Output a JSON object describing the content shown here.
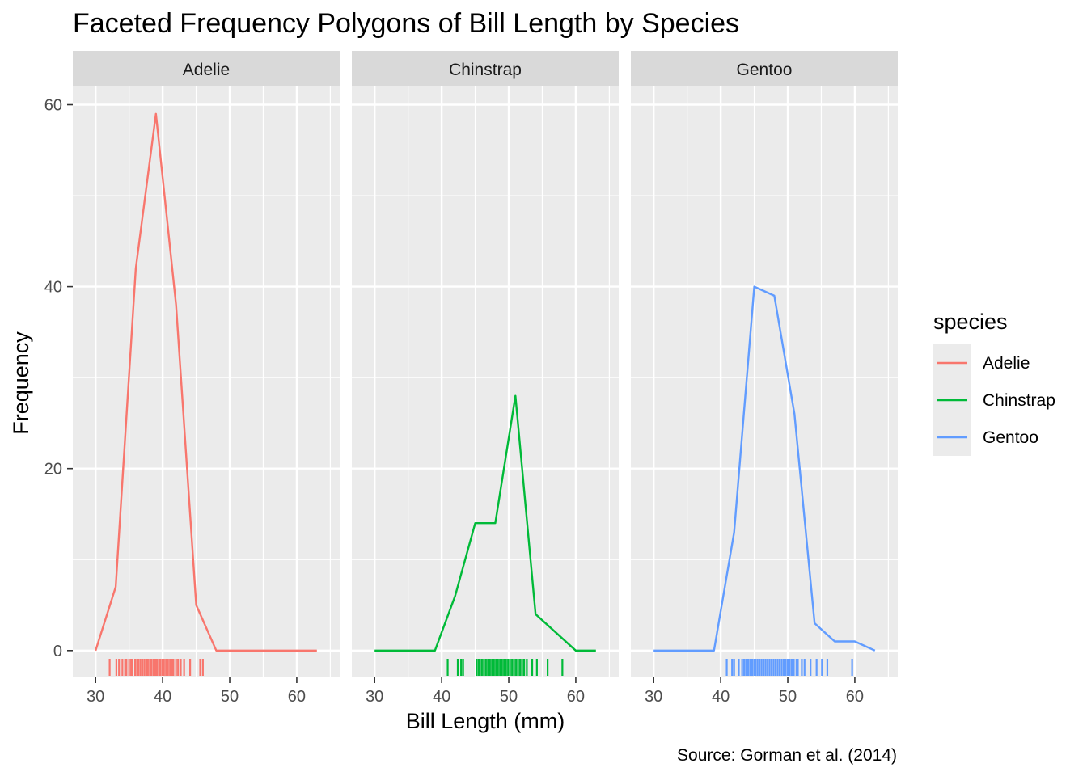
{
  "chart_data": {
    "type": "line",
    "title": "Faceted Frequency Polygons of Bill Length by Species",
    "xlabel": "Bill Length (mm)",
    "ylabel": "Frequency",
    "caption": "Source: Gorman et al. (2014)",
    "xlim": [
      26.6,
      66.4
    ],
    "ylim": [
      -2.95,
      62.0
    ],
    "x_ticks": [
      30,
      40,
      50,
      60
    ],
    "y_ticks": [
      0,
      20,
      40,
      60
    ],
    "grid": true,
    "facets": [
      "Adelie",
      "Chinstrap",
      "Gentoo"
    ],
    "legend": {
      "title": "species",
      "position": "right",
      "entries": [
        "Adelie",
        "Chinstrap",
        "Gentoo"
      ]
    },
    "series": [
      {
        "name": "Adelie",
        "color": "#F8766D",
        "x": [
          30,
          33,
          36,
          39,
          42,
          45,
          48,
          51,
          54,
          57,
          60,
          63
        ],
        "values": [
          0,
          7,
          42,
          59,
          38,
          5,
          0,
          0,
          0,
          0,
          0,
          0
        ],
        "rug": [
          32.1,
          33.1,
          33.5,
          34.0,
          34.4,
          34.6,
          35.0,
          35.3,
          35.5,
          35.9,
          36.2,
          36.4,
          36.7,
          37.0,
          37.3,
          37.6,
          37.8,
          38.1,
          38.3,
          38.6,
          38.8,
          39.0,
          39.2,
          39.5,
          39.7,
          40.0,
          40.2,
          40.5,
          40.8,
          41.1,
          41.4,
          41.6,
          42.0,
          42.3,
          42.7,
          43.2,
          44.1,
          45.6,
          46.0
        ]
      },
      {
        "name": "Chinstrap",
        "color": "#00BA38",
        "x": [
          30,
          33,
          36,
          39,
          42,
          45,
          48,
          51,
          54,
          57,
          60,
          63
        ],
        "values": [
          0,
          0,
          0,
          0,
          6,
          14,
          14,
          28,
          4,
          2,
          0,
          0
        ],
        "rug": [
          40.9,
          42.4,
          42.9,
          43.2,
          45.2,
          45.5,
          45.7,
          46.0,
          46.3,
          46.6,
          46.9,
          47.2,
          47.5,
          47.8,
          48.1,
          48.4,
          48.7,
          49.0,
          49.3,
          49.6,
          49.9,
          50.2,
          50.5,
          50.8,
          51.1,
          51.4,
          51.7,
          52.0,
          52.3,
          52.7,
          53.5,
          54.2,
          55.8,
          58.0
        ]
      },
      {
        "name": "Gentoo",
        "color": "#619CFF",
        "x": [
          30,
          33,
          36,
          39,
          42,
          45,
          48,
          51,
          54,
          57,
          60,
          63
        ],
        "values": [
          0,
          0,
          0,
          0,
          13,
          40,
          39,
          26,
          3,
          1,
          1,
          0
        ],
        "rug": [
          40.9,
          41.7,
          42.0,
          42.7,
          43.2,
          43.5,
          43.8,
          44.1,
          44.4,
          44.7,
          45.0,
          45.2,
          45.5,
          45.8,
          46.1,
          46.4,
          46.7,
          47.0,
          47.3,
          47.6,
          47.9,
          48.2,
          48.5,
          48.8,
          49.1,
          49.4,
          49.7,
          50.0,
          50.3,
          50.6,
          50.9,
          51.3,
          51.5,
          52.1,
          52.5,
          53.4,
          54.3,
          55.1,
          55.9,
          59.6
        ]
      }
    ]
  }
}
